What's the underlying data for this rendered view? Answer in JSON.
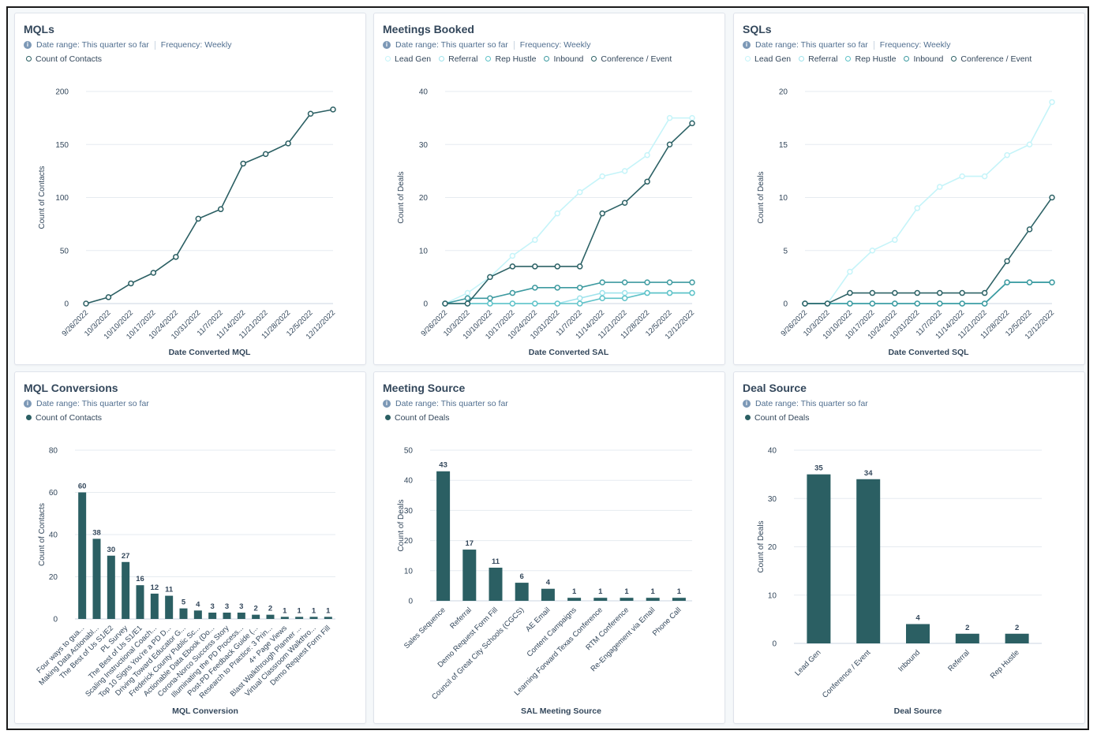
{
  "colors": {
    "dark": "#2b5f63",
    "lead_gen": "#c5f4f9",
    "referral": "#9fe3ec",
    "rep_hustle": "#5ec2c8",
    "inbound": "#3d9aa0",
    "conference": "#2d6266",
    "grid": "#e6ebf0",
    "axis_text": "#33475b"
  },
  "cards": {
    "mqls": {
      "title": "MQLs",
      "date_range": "Date range: This quarter so far",
      "frequency": "Frequency: Weekly"
    },
    "meetings": {
      "title": "Meetings Booked",
      "date_range": "Date range: This quarter so far",
      "frequency": "Frequency: Weekly"
    },
    "sqls": {
      "title": "SQLs",
      "date_range": "Date range: This quarter so far",
      "frequency": "Frequency: Weekly"
    },
    "mql_conversions": {
      "title": "MQL Conversions",
      "date_range": "Date range: This quarter so far"
    },
    "meeting_source": {
      "title": "Meeting Source",
      "date_range": "Date range: This quarter so far"
    },
    "deal_source": {
      "title": "Deal Source",
      "date_range": "Date range: This quarter so far"
    }
  },
  "chart_data": [
    {
      "id": "mqls",
      "type": "line",
      "title": "MQLs",
      "xlabel": "Date Converted MQL",
      "ylabel": "Count of Contacts",
      "ylim": [
        0,
        200
      ],
      "yticks": [
        0,
        50,
        100,
        150,
        200
      ],
      "x": [
        "9/26/2022",
        "10/3/2022",
        "10/10/2022",
        "10/17/2022",
        "10/24/2022",
        "10/31/2022",
        "11/7/2022",
        "11/14/2022",
        "11/21/2022",
        "11/28/2022",
        "12/5/2022",
        "12/12/2022"
      ],
      "series": [
        {
          "name": "Count of Contacts",
          "color": "#2b5f63",
          "values": [
            0,
            6,
            19,
            29,
            44,
            80,
            89,
            132,
            141,
            151,
            179,
            183
          ]
        }
      ]
    },
    {
      "id": "meetings",
      "type": "line",
      "title": "Meetings Booked",
      "xlabel": "Date Converted SAL",
      "ylabel": "Count of Deals",
      "ylim": [
        0,
        40
      ],
      "yticks": [
        0,
        10,
        20,
        30,
        40
      ],
      "x": [
        "9/26/2022",
        "10/3/2022",
        "10/10/2022",
        "10/17/2022",
        "10/24/2022",
        "10/31/2022",
        "11/7/2022",
        "11/14/2022",
        "11/21/2022",
        "11/28/2022",
        "12/5/2022",
        "12/12/2022"
      ],
      "series": [
        {
          "name": "Lead Gen",
          "color": "#c5f4f9",
          "values": [
            0,
            2,
            5,
            9,
            12,
            17,
            21,
            24,
            25,
            28,
            35,
            35
          ]
        },
        {
          "name": "Referral",
          "color": "#9fe3ec",
          "values": [
            0,
            0,
            0,
            0,
            0,
            0,
            1,
            2,
            2,
            2,
            2,
            2
          ]
        },
        {
          "name": "Rep Hustle",
          "color": "#5ec2c8",
          "values": [
            0,
            0,
            0,
            0,
            0,
            0,
            0,
            1,
            1,
            2,
            2,
            2
          ]
        },
        {
          "name": "Inbound",
          "color": "#3d9aa0",
          "values": [
            0,
            1,
            1,
            2,
            3,
            3,
            3,
            4,
            4,
            4,
            4,
            4
          ]
        },
        {
          "name": "Conference / Event",
          "color": "#2d6266",
          "values": [
            0,
            0,
            5,
            7,
            7,
            7,
            7,
            17,
            19,
            23,
            30,
            34
          ]
        }
      ]
    },
    {
      "id": "sqls",
      "type": "line",
      "title": "SQLs",
      "xlabel": "Date Converted SQL",
      "ylabel": "Count of Deals",
      "ylim": [
        0,
        20
      ],
      "yticks": [
        0,
        5,
        10,
        15,
        20
      ],
      "x": [
        "9/26/2022",
        "10/3/2022",
        "10/10/2022",
        "10/17/2022",
        "10/24/2022",
        "10/31/2022",
        "11/7/2022",
        "11/14/2022",
        "11/21/2022",
        "11/28/2022",
        "12/5/2022",
        "12/12/2022"
      ],
      "series": [
        {
          "name": "Lead Gen",
          "color": "#c5f4f9",
          "values": [
            0,
            0,
            3,
            5,
            6,
            9,
            11,
            12,
            12,
            14,
            15,
            19
          ]
        },
        {
          "name": "Referral",
          "color": "#9fe3ec",
          "values": [
            0,
            0,
            0,
            0,
            0,
            0,
            0,
            0,
            0,
            2,
            2,
            2
          ]
        },
        {
          "name": "Rep Hustle",
          "color": "#5ec2c8",
          "values": [
            0,
            0,
            0,
            0,
            0,
            0,
            0,
            0,
            0,
            2,
            2,
            2
          ]
        },
        {
          "name": "Inbound",
          "color": "#3d9aa0",
          "values": [
            0,
            0,
            0,
            0,
            0,
            0,
            0,
            0,
            0,
            2,
            2,
            2
          ]
        },
        {
          "name": "Conference / Event",
          "color": "#2d6266",
          "values": [
            0,
            0,
            1,
            1,
            1,
            1,
            1,
            1,
            1,
            4,
            7,
            10
          ]
        }
      ]
    },
    {
      "id": "mql_conversions",
      "type": "bar",
      "title": "MQL Conversions",
      "xlabel": "MQL Conversion",
      "ylabel": "Count of Contacts",
      "legend": "Count of Contacts",
      "ylim": [
        0,
        80
      ],
      "yticks": [
        0,
        20,
        40,
        60,
        80
      ],
      "categories": [
        "Four ways to gua...",
        "Making Data Actionabl...",
        "The Best of Us S1/E2",
        "PL Survey",
        "The Best of Us S1/E1",
        "Scaling Instructional Coach...",
        "Top 10 Signs You're a PD D...",
        "Driving Toward Educator G...",
        "Frederick County Public Sc...",
        "Actionable Data Ebook (Do...",
        "Corona-Norco Success Story",
        "Illuminating the PD Process...",
        "Post-PD Feedback Guide (...",
        "Research to Practice: 3 Prin...",
        "4+ Page Views",
        "Blast Walkthrough Planner ...",
        "Virtual Classroom Walkthro...",
        "Demo Request Form Fill"
      ],
      "values": [
        60,
        38,
        30,
        27,
        16,
        12,
        11,
        5,
        4,
        3,
        3,
        3,
        2,
        2,
        1,
        1,
        1,
        1
      ]
    },
    {
      "id": "meeting_source",
      "type": "bar",
      "title": "Meeting Source",
      "xlabel": "SAL Meeting Source",
      "ylabel": "Count of Deals",
      "legend": "Count of Deals",
      "ylim": [
        0,
        50
      ],
      "yticks": [
        0,
        10,
        20,
        30,
        40,
        50
      ],
      "categories": [
        "Sales Sequence",
        "Referral",
        "Demo Request Form Fill",
        "Council of Great City Schools (CGCS)",
        "AE Email",
        "Content Campaigns",
        "Learning Forward Texas Conference",
        "RTM Conference",
        "Re-Engagement via Email",
        "Phone Call"
      ],
      "values": [
        43,
        17,
        11,
        6,
        4,
        1,
        1,
        1,
        1,
        1
      ]
    },
    {
      "id": "deal_source",
      "type": "bar",
      "title": "Deal Source",
      "xlabel": "Deal Source",
      "ylabel": "Count of Deals",
      "legend": "Count of Deals",
      "ylim": [
        0,
        40
      ],
      "yticks": [
        0,
        10,
        20,
        30,
        40
      ],
      "categories": [
        "Lead Gen",
        "Conference / Event",
        "Inbound",
        "Referral",
        "Rep Hustle"
      ],
      "values": [
        35,
        34,
        4,
        2,
        2
      ]
    }
  ]
}
